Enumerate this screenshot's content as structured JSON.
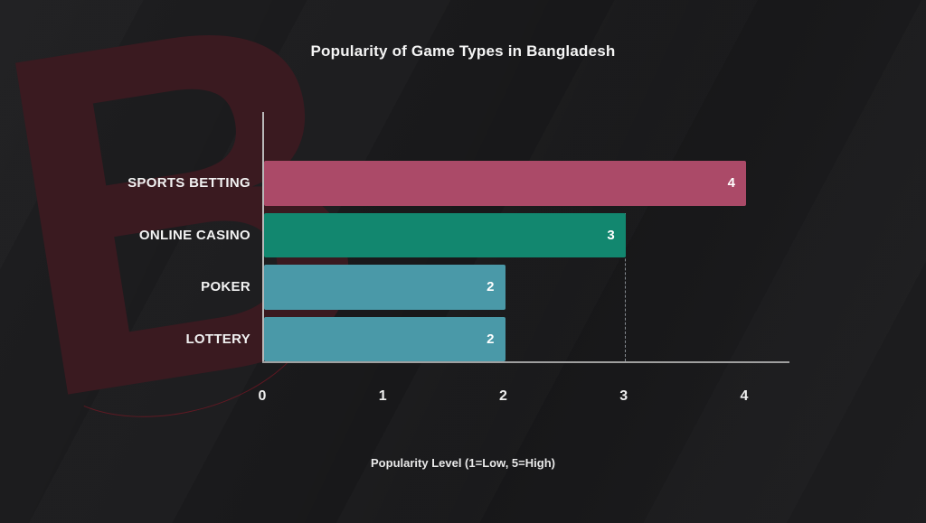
{
  "page": {
    "background_color": "#1b1b1d",
    "text_color": "#f5f5f5"
  },
  "watermark": {
    "letter": "B",
    "color": "#3a1a20"
  },
  "chart_data": {
    "type": "bar",
    "orientation": "horizontal",
    "title": "Popularity of Game Types in Bangladesh",
    "categories": [
      "SPORTS BETTING",
      "ONLINE CASINO",
      "POKER",
      "LOTTERY"
    ],
    "values": [
      4,
      3,
      2,
      2
    ],
    "value_labels": [
      "4",
      "3",
      "2",
      "2"
    ],
    "bar_colors": [
      "#ab4a68",
      "#12876f",
      "#4a99a8",
      "#4a99a8"
    ],
    "xlabel": "Popularity Level (1=Low, 5=High)",
    "ylabel": "",
    "xlim": [
      0,
      4
    ],
    "x_ticks": [
      "0",
      "1",
      "2",
      "3",
      "4"
    ],
    "grid": false,
    "reference_line": {
      "x": 3,
      "style": "dashed"
    },
    "legend_position": "none",
    "axis_color": "#b0b0b0",
    "label_color": "#f2f2f2"
  }
}
